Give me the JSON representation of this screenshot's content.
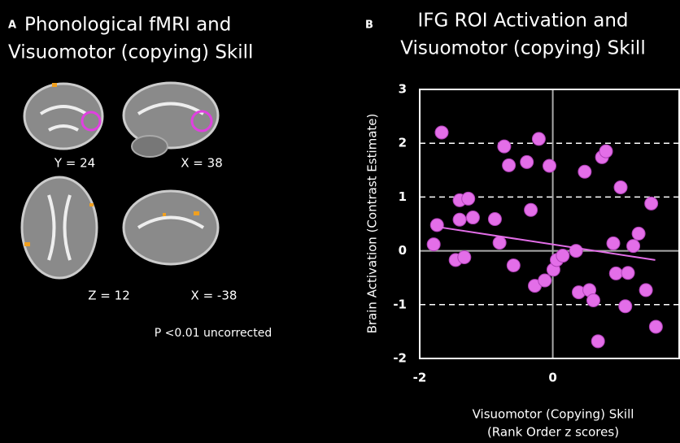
{
  "panel_a": {
    "letter": "A",
    "title": [
      "Phonological fMRI and",
      "Visuomotor (copying) Skill"
    ],
    "slice_labels": [
      "Y = 24",
      "X = 38",
      "Z = 12",
      "X = -38"
    ],
    "threshold": "P <0.01 uncorrected"
  },
  "chart_data": {
    "type": "scatter",
    "letter": "B",
    "title": [
      "IFG ROI Activation and",
      "Visuomotor (copying) Skill"
    ],
    "y_label": "Brain Activation (Contrast Estimate)",
    "x_label": [
      "Visuomotor (Copying) Skill",
      "(Rank Order z scores)"
    ],
    "xlim": [
      -2,
      1.9
    ],
    "ylim": [
      -2,
      3
    ],
    "xticks": [
      -2,
      0
    ],
    "yticks": [
      -2,
      -1,
      0,
      1,
      2,
      3
    ],
    "grid": true,
    "color": "#e36ee8",
    "x": [
      -1.67,
      -1.79,
      -1.74,
      -1.4,
      -1.2,
      -1.4,
      -1.27,
      -0.87,
      -0.8,
      -1.46,
      -1.33,
      -0.73,
      -0.66,
      -0.39,
      -0.21,
      -0.05,
      -0.33,
      -0.59,
      -0.27,
      -0.12,
      0.01,
      0.06,
      0.15,
      0.35,
      0.48,
      0.39,
      0.55,
      0.61,
      0.68,
      0.74,
      0.8,
      0.91,
      0.95,
      1.02,
      1.09,
      1.13,
      1.21,
      1.29,
      1.4,
      1.48,
      1.55
    ],
    "values": [
      2.2,
      0.12,
      0.48,
      0.58,
      0.62,
      0.94,
      0.97,
      0.59,
      0.15,
      -0.17,
      -0.12,
      1.94,
      1.59,
      1.65,
      2.08,
      1.58,
      0.76,
      -0.27,
      -0.65,
      -0.55,
      -0.35,
      -0.17,
      -0.09,
      0.0,
      1.47,
      -0.77,
      -0.73,
      -0.92,
      -1.68,
      1.74,
      1.85,
      0.14,
      -0.42,
      1.18,
      -1.03,
      -0.41,
      0.09,
      0.32,
      -0.73,
      0.88,
      -1.41
    ],
    "trendline": {
      "color": "#e36ee8",
      "x": [
        -1.76,
        1.54
      ],
      "y": [
        0.45,
        -0.17
      ]
    }
  }
}
